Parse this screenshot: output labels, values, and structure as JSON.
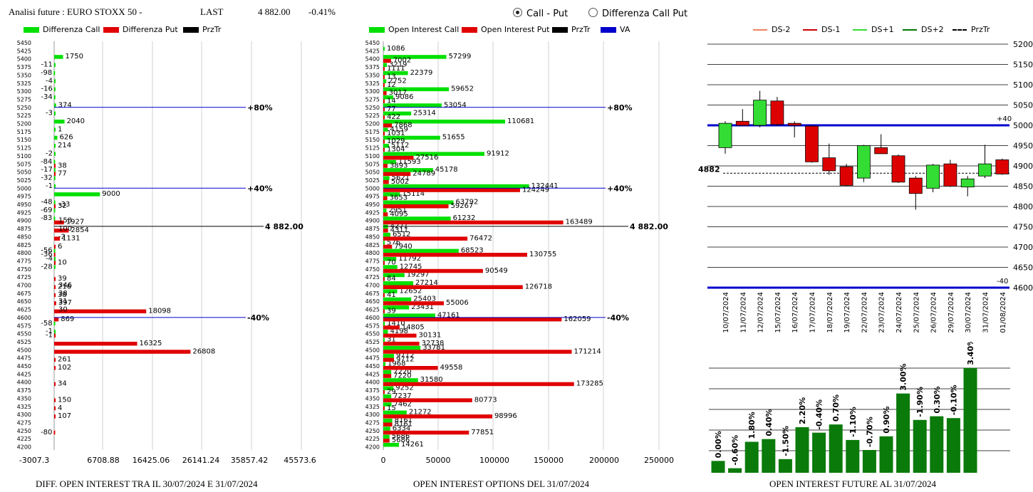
{
  "header": {
    "title": "Analisi future : EURO STOXX 50 -",
    "last_label": "LAST",
    "last_value": "4 882.00",
    "change": "-0.41%"
  },
  "options": {
    "call_put": "Call - Put",
    "diff_call_put": "Differenza Call Put",
    "selected": "call_put"
  },
  "panels": {
    "left_title": "DIFF. OPEN INTEREST TRA IL 30/07/2024 E 31/07/2024",
    "mid_title": "OPEN INTEREST OPTIONS DEL 31/07/2024",
    "right_title": "OPEN INTEREST FUTURE AL 31/07/2024"
  },
  "legends": {
    "left": [
      {
        "label": "Differenza Call",
        "color": "#00e000"
      },
      {
        "label": "Differenza Put",
        "color": "#e00000"
      },
      {
        "label": "PrzTr",
        "color": "#000000"
      }
    ],
    "mid": [
      {
        "label": "Open Interest Call",
        "color": "#00e000"
      },
      {
        "label": "Open Interest Put",
        "color": "#e00000"
      },
      {
        "label": "PrzTr",
        "color": "#000000"
      },
      {
        "label": "VA",
        "color": "#0000cc"
      }
    ],
    "right": [
      {
        "label": "DS-2",
        "color": "#f08060",
        "style": "solid"
      },
      {
        "label": "DS-1",
        "color": "#cc0000",
        "style": "solid"
      },
      {
        "label": "DS+1",
        "color": "#33dd33",
        "style": "solid"
      },
      {
        "label": "DS+2",
        "color": "#007700",
        "style": "solid"
      },
      {
        "label": "PrzTr",
        "color": "#000000",
        "style": "dashed"
      }
    ]
  },
  "chart_data": [
    {
      "type": "bar",
      "orientation": "horizontal",
      "title": "DIFF. OPEN INTEREST TRA IL 30/07/2024 E 31/07/2024",
      "categories": [
        5450,
        5425,
        5400,
        5375,
        5350,
        5325,
        5300,
        5275,
        5250,
        5225,
        5200,
        5175,
        5150,
        5125,
        5100,
        5075,
        5050,
        5025,
        5000,
        4975,
        4950,
        4925,
        4900,
        4875,
        4850,
        4825,
        4800,
        4775,
        4750,
        4725,
        4700,
        4675,
        4650,
        4625,
        4600,
        4575,
        4550,
        4525,
        4500,
        4475,
        4450,
        4425,
        4400,
        4375,
        4350,
        4325,
        4300,
        4275,
        4250,
        4225,
        4200
      ],
      "series": [
        {
          "name": "Differenza Call",
          "color": "#00e000",
          "values": {
            "5400": 1750,
            "5375": -11,
            "5350": -98,
            "5325": -4,
            "5300": -16,
            "5275": -34,
            "5250": 374,
            "5225": -3,
            "5200": 2040,
            "5175": 1,
            "5150": 626,
            "5125": 214,
            "5100": -2,
            "5075": -84,
            "5050": -17,
            "5025": -32,
            "5000": -1,
            "4975": 9000,
            "4950": -48,
            "4925": -69,
            "4900": -83,
            "4800": -56,
            "4775": -4,
            "4750": -28,
            "4575": -58,
            "4550": -1
          }
        },
        {
          "name": "Differenza Put",
          "color": "#e00000",
          "values": {
            "5075": 38,
            "5050": 77,
            "4950": 32,
            "4900": 1927,
            "4875": 2854,
            "4850": 1131,
            "4825": 6,
            "4800": -36,
            "4775": 10,
            "4725": 39,
            "4700": 216,
            "4675": 38,
            "4650": 397,
            "4625": 18098,
            "4600": 869,
            "4550": -1,
            "4525": 16325,
            "4500": 26808,
            "4475": 261,
            "4450": 102,
            "4400": 34,
            "4350": 150,
            "4325": 4,
            "4300": 107,
            "4250": -80
          }
        }
      ],
      "extra_labels": [
        {
          "strike": 4900,
          "text": "158"
        },
        {
          "strike": 4875,
          "text": "100"
        },
        {
          "strike": 4850,
          "text": "-2"
        },
        {
          "strike": 4700,
          "text": "346"
        },
        {
          "strike": 4675,
          "text": "38"
        },
        {
          "strike": 4650,
          "text": "31"
        },
        {
          "strike": 4625,
          "text": "30"
        },
        {
          "strike": 4950,
          "text": "-33"
        }
      ],
      "reference_lines": [
        {
          "strike": 5250,
          "label": "+80%",
          "color": "#0000cc"
        },
        {
          "strike": 5000,
          "label": "+40%",
          "color": "#0000cc"
        },
        {
          "strike": 4882,
          "label": "4 882.00",
          "color": "#000000"
        },
        {
          "strike": 4600,
          "label": "-40%",
          "color": "#0000cc"
        }
      ],
      "x_ticks": [
        "-3007.3",
        "6708.88",
        "16425.06",
        "26141.24",
        "35857.42",
        "45573.6"
      ],
      "xlim": [
        -3007.3,
        45573.6
      ]
    },
    {
      "type": "bar",
      "orientation": "horizontal",
      "title": "OPEN INTEREST OPTIONS DEL 31/07/2024",
      "categories": [
        5450,
        5425,
        5400,
        5375,
        5350,
        5325,
        5300,
        5275,
        5250,
        5225,
        5200,
        5175,
        5150,
        5125,
        5100,
        5075,
        5050,
        5025,
        5000,
        4975,
        4950,
        4925,
        4900,
        4875,
        4850,
        4825,
        4800,
        4775,
        4750,
        4725,
        4700,
        4675,
        4650,
        4625,
        4600,
        4575,
        4550,
        4525,
        4500,
        4475,
        4450,
        4425,
        4400,
        4375,
        4350,
        4325,
        4300,
        4275,
        4250,
        4225,
        4200
      ],
      "series": [
        {
          "name": "Open Interest Call",
          "color": "#00e000",
          "values": {
            "5425": 1086,
            "5400": 57299,
            "5375": 3219,
            "5350": 22379,
            "5325": 2752,
            "5300": 59652,
            "5275": 9086,
            "5250": 53054,
            "5225": 25314,
            "5200": 110681,
            "5175": 4159,
            "5150": 51655,
            "5125": 5112,
            "5100": 91912,
            "5075": 11593,
            "5050": 45178,
            "5025": 5621,
            "5000": 132441,
            "4975": 15114,
            "4950": 63792,
            "4925": 2951,
            "4900": 61232,
            "4875": 4271,
            "4850": 6512,
            "4825": 576,
            "4800": 68523,
            "4775": 11792,
            "4750": 12745,
            "4725": 19297,
            "4700": 27214,
            "4675": 12652,
            "4650": 25403,
            "4625": 23431,
            "4600": 47161,
            "4575": 1410,
            "4550": 4198,
            "4525": 31,
            "4500": 33781,
            "4475": 9712,
            "4450": 1968,
            "4425": 7220,
            "4400": 31580,
            "4375": 9252,
            "4350": 7237,
            "4325": 7462,
            "4300": 21272,
            "4275": 8161,
            "4250": 6334,
            "4225": 5686,
            "4200": 14261
          }
        },
        {
          "name": "Open Interest Put",
          "color": "#e00000",
          "values": {
            "5400": 7002,
            "5375": 1111,
            "5350": 13,
            "5325": 12,
            "5300": 3017,
            "5275": 14,
            "5250": 77,
            "5225": 422,
            "5200": 7868,
            "5175": 1031,
            "5150": 1029,
            "5125": 1304,
            "5100": 27516,
            "5075": 3893,
            "5050": 24789,
            "5025": 5002,
            "5000": 124249,
            "4975": 3653,
            "4950": 59267,
            "4925": 4095,
            "4900": 163489,
            "4875": 4311,
            "4850": 76472,
            "4825": 7940,
            "4800": 130755,
            "4775": 70,
            "4750": 90549,
            "4725": 84,
            "4700": 126718,
            "4675": 41,
            "4650": 55006,
            "4625": 39,
            "4600": 162059,
            "4575": 14805,
            "4550": 30131,
            "4525": 32738,
            "4500": 171214,
            "4475": 9712,
            "4450": 49558,
            "4425": 7220,
            "4400": 173285,
            "4375": 29,
            "4350": 80773,
            "4325": 15,
            "4300": 98996,
            "4275": 8161,
            "4250": 77851,
            "4225": 5686
          }
        }
      ],
      "reference_lines": [
        {
          "strike": 5250,
          "label": "+80%",
          "color": "#0000cc"
        },
        {
          "strike": 5000,
          "label": "+40%",
          "color": "#0000cc"
        },
        {
          "strike": 4882,
          "label": "4 882.00",
          "color": "#000000"
        },
        {
          "strike": 4600,
          "label": "-40%",
          "color": "#0000cc"
        }
      ],
      "x_ticks": [
        "0",
        "50000",
        "100000",
        "150000",
        "200000",
        "250000"
      ],
      "xlim": [
        0,
        260000
      ]
    },
    {
      "type": "candlestick",
      "title": "",
      "dates": [
        "10/07/2024",
        "11/07/2024",
        "12/07/2024",
        "15/07/2024",
        "16/07/2024",
        "17/07/2024",
        "18/07/2024",
        "19/07/2024",
        "22/07/2024",
        "23/07/2024",
        "24/07/2024",
        "25/07/2024",
        "26/07/2024",
        "29/07/2024",
        "30/07/2024",
        "31/07/2024",
        "01/08/2024"
      ],
      "candles": [
        {
          "o": 4945,
          "h": 5010,
          "l": 4930,
          "c": 5005,
          "up": true
        },
        {
          "o": 5010,
          "h": 5040,
          "l": 4998,
          "c": 5000,
          "up": false
        },
        {
          "o": 5000,
          "h": 5085,
          "l": 4995,
          "c": 5062,
          "up": true
        },
        {
          "o": 5060,
          "h": 5070,
          "l": 4998,
          "c": 5002,
          "up": false
        },
        {
          "o": 5005,
          "h": 5010,
          "l": 4970,
          "c": 5000,
          "up": false
        },
        {
          "o": 4998,
          "h": 5000,
          "l": 4908,
          "c": 4910,
          "up": false
        },
        {
          "o": 4920,
          "h": 4955,
          "l": 4878,
          "c": 4888,
          "up": false
        },
        {
          "o": 4898,
          "h": 4905,
          "l": 4850,
          "c": 4852,
          "up": false
        },
        {
          "o": 4870,
          "h": 4952,
          "l": 4860,
          "c": 4950,
          "up": true
        },
        {
          "o": 4945,
          "h": 4978,
          "l": 4930,
          "c": 4930,
          "up": false
        },
        {
          "o": 4925,
          "h": 4928,
          "l": 4858,
          "c": 4860,
          "up": false
        },
        {
          "o": 4870,
          "h": 4875,
          "l": 4792,
          "c": 4832,
          "up": false
        },
        {
          "o": 4845,
          "h": 4905,
          "l": 4835,
          "c": 4902,
          "up": true
        },
        {
          "o": 4905,
          "h": 4915,
          "l": 4848,
          "c": 4850,
          "up": false
        },
        {
          "o": 4848,
          "h": 4875,
          "l": 4825,
          "c": 4868,
          "up": true
        },
        {
          "o": 4875,
          "h": 4952,
          "l": 4870,
          "c": 4905,
          "up": true
        },
        {
          "o": 4915,
          "h": 4918,
          "l": 4878,
          "c": 4880,
          "up": false
        }
      ],
      "ylim": [
        4600,
        5200
      ],
      "y_ticks": [
        "5200",
        "5150",
        "5100",
        "5050",
        "5000",
        "4950",
        "4900",
        "4850",
        "4800",
        "4750",
        "4700",
        "4650",
        "4600"
      ],
      "reference_lines": [
        {
          "value": 5000,
          "label": "+40",
          "color": "#0000cc"
        },
        {
          "value": 4600,
          "label": "-40",
          "color": "#0000cc"
        },
        {
          "value": 4882,
          "label": "4882",
          "color": "#000000",
          "style": "dashed"
        }
      ]
    },
    {
      "type": "bar",
      "title": "OPEN INTEREST FUTURE AL 31/07/2024",
      "color": "#0a7a0a",
      "labels": [
        "0.00%",
        "-0.60%",
        "1.80%",
        "0.40%",
        "-1.50%",
        "2.20%",
        "-0.40%",
        "0.70%",
        "-1.10%",
        "-0.70%",
        "0.90%",
        "3.00%",
        "-1.90%",
        "0.30%",
        "-0.10%",
        "3.40%"
      ],
      "values": [
        0.13,
        0.05,
        0.34,
        0.37,
        0.15,
        0.5,
        0.44,
        0.53,
        0.36,
        0.25,
        0.4,
        0.87,
        0.58,
        0.62,
        0.6,
        1.15
      ]
    }
  ]
}
